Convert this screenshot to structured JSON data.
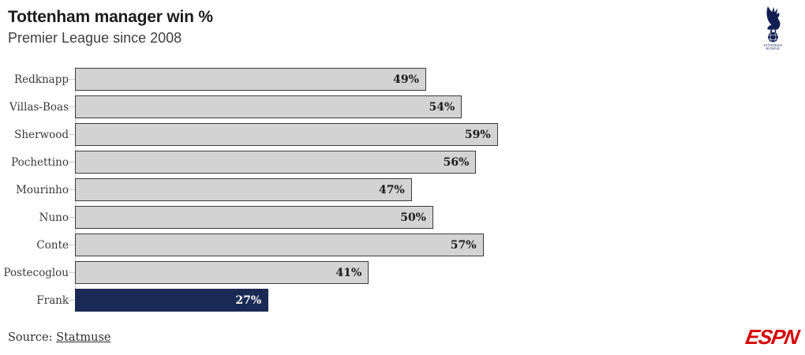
{
  "header": {
    "title": "Tottenham manager win %",
    "subtitle": "Premier League since 2008"
  },
  "logo": {
    "club_text_top": "TOTTENHAM",
    "club_text_bottom": "HOTSPUR"
  },
  "footer": {
    "source_prefix": "Source: ",
    "source_link": "Statmuse",
    "brand": "ESPN"
  },
  "colors": {
    "bar_fill": "#d3d3d3",
    "bar_border": "#3d3d3d",
    "highlight": "#1b2a55",
    "navy": "#131f53",
    "accent_red": "#d60000"
  },
  "chart_data": {
    "type": "bar",
    "orientation": "horizontal",
    "title": "Tottenham manager win %",
    "subtitle": "Premier League since 2008",
    "categories": [
      "Redknapp",
      "Villas-Boas",
      "Sherwood",
      "Pochettino",
      "Mourinho",
      "Nuno",
      "Conte",
      "Postecoglou",
      "Frank"
    ],
    "values": [
      49,
      54,
      59,
      56,
      47,
      50,
      57,
      41,
      27
    ],
    "value_suffix": "%",
    "highlighted_category": "Frank",
    "xlim": [
      0,
      100
    ],
    "grid": false,
    "legend": "none"
  }
}
